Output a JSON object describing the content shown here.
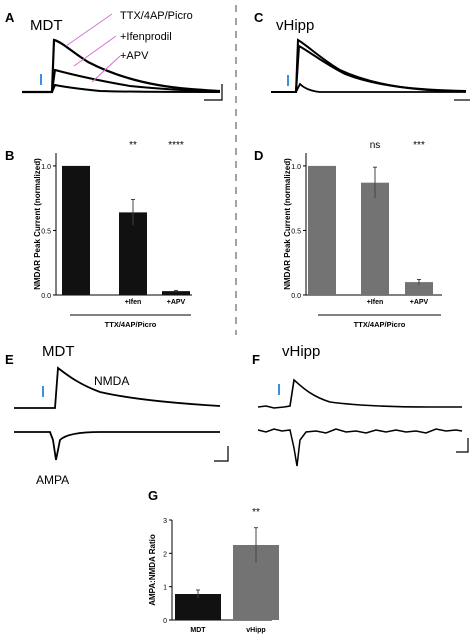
{
  "panels": {
    "A": {
      "letter": "A",
      "title": "MDT",
      "labels": [
        "TTX/4AP/Picro",
        "+Ifenprodil",
        "+APV"
      ]
    },
    "C": {
      "letter": "C",
      "title": "vHipp"
    },
    "E": {
      "letter": "E",
      "title": "MDT",
      "trace_labels": [
        "NMDA",
        "AMPA"
      ]
    },
    "F": {
      "letter": "F",
      "title": "vHipp"
    },
    "B": {
      "letter": "B"
    },
    "D": {
      "letter": "D"
    },
    "G": {
      "letter": "G"
    }
  },
  "colors": {
    "mdt_bar": "#111111",
    "vhipp_bar": "#737373",
    "pink_line": "#d66fd6",
    "stim_marker": "#3b8fe0"
  },
  "chart_data": [
    {
      "id": "B",
      "type": "bar",
      "ylabel": "NMDAR Peak Current (normalized)",
      "categories": [
        "",
        "+Ifen",
        "+APV"
      ],
      "group_label": "TTX/4AP/Picro",
      "values": [
        1.0,
        0.64,
        0.03
      ],
      "errors": [
        0,
        0.1,
        0.005
      ],
      "significance": [
        "",
        "**",
        "****"
      ],
      "ylim": [
        0,
        1.1
      ],
      "yticks": [
        "0.0",
        "0.5",
        "1.0"
      ],
      "yticks_v": [
        0,
        0.5,
        1.0
      ],
      "bar_color": "#111111"
    },
    {
      "id": "D",
      "type": "bar",
      "ylabel": "NMDAR Peak Current (normalized)",
      "categories": [
        "",
        "+Ifen",
        "+APV"
      ],
      "group_label": "TTX/4AP/Picro",
      "values": [
        1.0,
        0.87,
        0.1
      ],
      "errors": [
        0,
        0.12,
        0.02
      ],
      "significance": [
        "",
        "ns",
        "***"
      ],
      "ylim": [
        0,
        1.1
      ],
      "yticks": [
        "0.0",
        "0.5",
        "1.0"
      ],
      "yticks_v": [
        0,
        0.5,
        1.0
      ],
      "bar_color": "#737373"
    },
    {
      "id": "G",
      "type": "bar",
      "ylabel": "AMPA:NMDA Ratio",
      "categories": [
        "MDT",
        "vHipp"
      ],
      "values": [
        0.78,
        2.25
      ],
      "errors": [
        0.12,
        0.52
      ],
      "significance": [
        "",
        "**"
      ],
      "ylim": [
        0,
        3.0
      ],
      "yticks": [
        "0",
        "1",
        "2",
        "3"
      ],
      "yticks_v": [
        0,
        1,
        2,
        3
      ],
      "bar_colors": [
        "#111111",
        "#737373"
      ]
    }
  ]
}
